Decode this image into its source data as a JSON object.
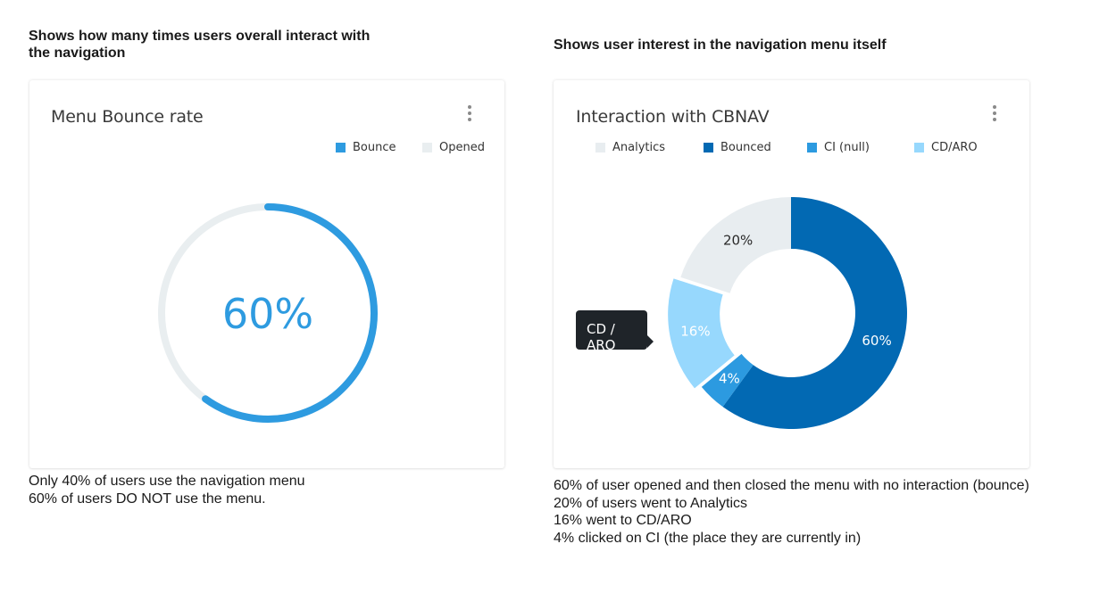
{
  "left": {
    "heading": [
      "Shows how many times users overall interact with",
      "the navigation"
    ],
    "card_title": "Menu Bounce rate",
    "menu_icon": "kebab-vertical-icon",
    "description": [
      "Only 40% of users use the navigation menu",
      "60% of users DO NOT use the menu."
    ]
  },
  "right": {
    "heading": "Shows user interest in the navigation menu itself",
    "card_title": "Interaction with CBNAV",
    "menu_icon": "kebab-vertical-icon",
    "tooltip": "CD / ARO",
    "description": [
      "60% of user opened and then closed the menu with no interaction (bounce)",
      "20% of users went to Analytics",
      "16% went to CD/ARO",
      "4% clicked on CI (the place they are currently in)"
    ]
  },
  "chart_data": [
    {
      "type": "pie",
      "style": "gauge-ring",
      "title": "Menu Bounce rate",
      "center_label": "60%",
      "legend_position": "top-right",
      "series": [
        {
          "name": "Bounce",
          "value": 60,
          "color": "#2e9be0"
        },
        {
          "name": "Opened",
          "value": 40,
          "color": "#e9eef0"
        }
      ]
    },
    {
      "type": "pie",
      "style": "donut",
      "title": "Interaction with CBNAV",
      "legend_position": "top",
      "highlighted": "CD/ARO",
      "series": [
        {
          "name": "Analytics",
          "value": 20,
          "label": "20%",
          "color": "#e8edf0",
          "label_color": "#2a2a2a"
        },
        {
          "name": "Bounced",
          "value": 60,
          "label": "60%",
          "color": "#0269b3",
          "label_color": "#ffffff"
        },
        {
          "name": "CI (null)",
          "value": 4,
          "label": "4%",
          "color": "#2c9ae0",
          "label_color": "#ffffff"
        },
        {
          "name": "CD/ARO",
          "value": 16,
          "label": "16%",
          "color": "#97d8fd",
          "label_color": "#ffffff"
        }
      ]
    }
  ]
}
